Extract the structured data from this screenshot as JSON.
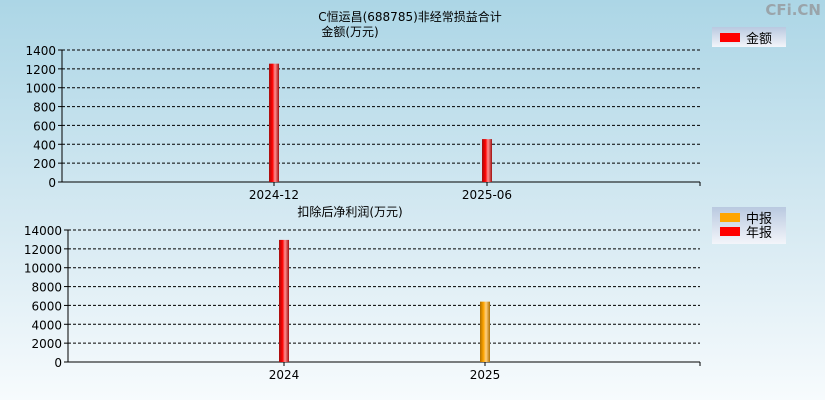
{
  "watermark": "CFi.CN",
  "chart_data": [
    {
      "type": "bar",
      "title": "C恒运昌(688785)非经常损益合计",
      "ylabel": "金额(万元)",
      "categories": [
        "2024-12",
        "2025-06"
      ],
      "series": [
        {
          "name": "金额",
          "values": [
            1255,
            455
          ],
          "color": "#ff0000"
        }
      ],
      "bar_colors": [
        "#ff0000",
        "#ff0000"
      ],
      "ylim": [
        0,
        1400
      ],
      "yticks": [
        0,
        200,
        400,
        600,
        800,
        1000,
        1200,
        1400
      ],
      "grid": true,
      "legend": "top-right"
    },
    {
      "type": "bar",
      "title": "扣除后净利润(万元)",
      "categories": [
        "2024",
        "2025"
      ],
      "series": [
        {
          "name": "中报",
          "color": "#ffa500"
        },
        {
          "name": "年报",
          "color": "#ff0000"
        }
      ],
      "values": [
        12950,
        6400
      ],
      "bar_colors": [
        "#ff0000",
        "#ffa500"
      ],
      "ylim": [
        0,
        14000
      ],
      "yticks": [
        0,
        2000,
        4000,
        6000,
        8000,
        10000,
        12000,
        14000
      ],
      "grid": true,
      "legend": "top-right"
    }
  ]
}
